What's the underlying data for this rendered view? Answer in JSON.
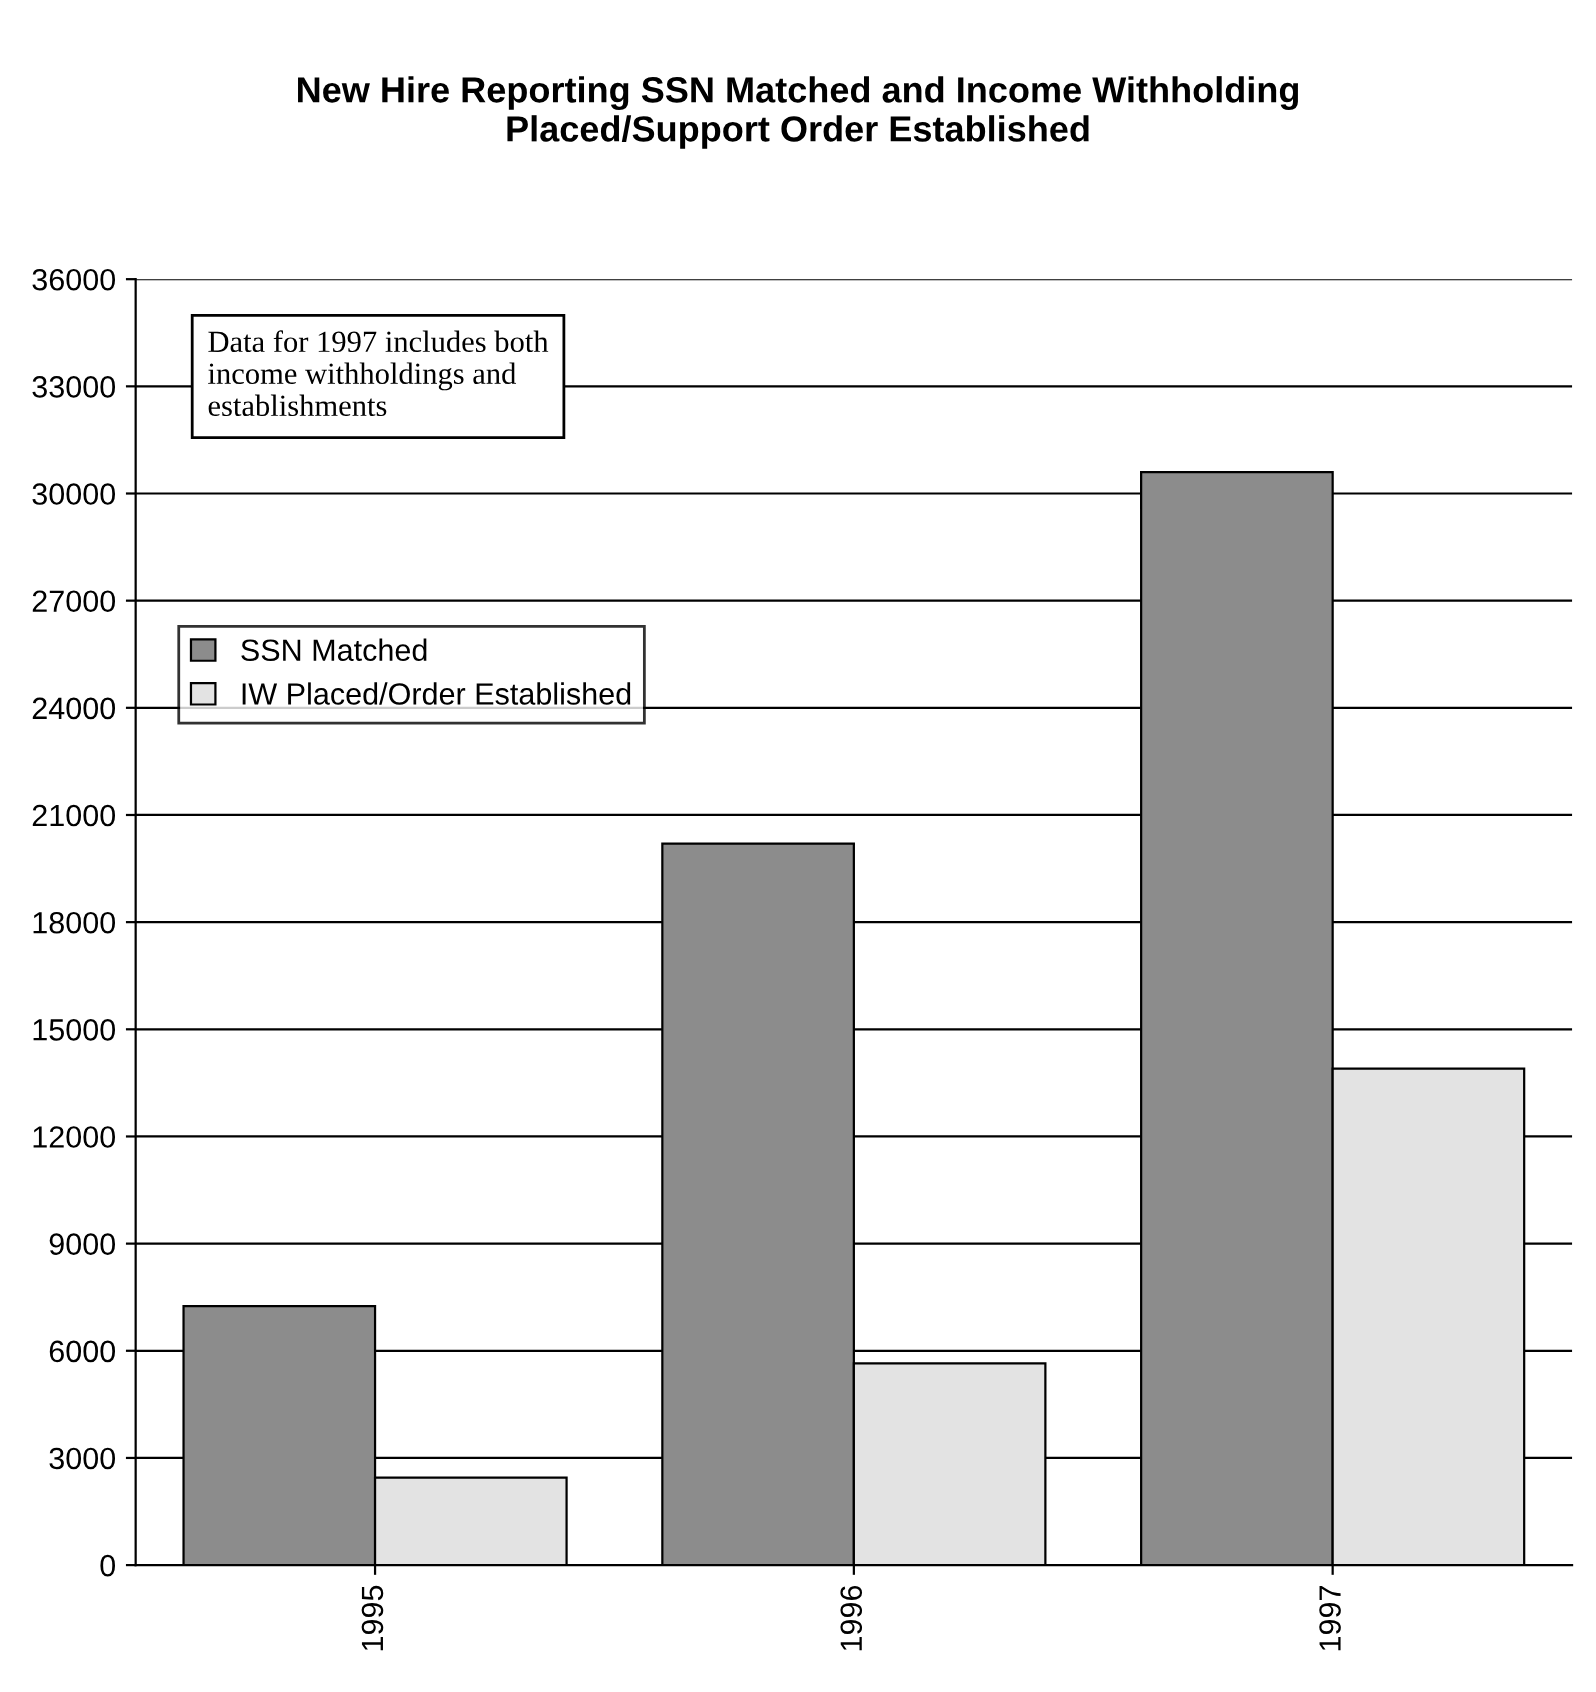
{
  "chart_data": {
    "type": "bar",
    "title": "New Hire Reporting SSN Matched and Income Withholding\nPlaced/Support Order Established",
    "categories": [
      "1995",
      "1996",
      "1997"
    ],
    "series": [
      {
        "name": "SSN Matched",
        "color": "#8c8c8c",
        "values": [
          7250,
          20200,
          30600
        ]
      },
      {
        "name": "IW Placed/Order Established",
        "color": "#e3e3e3",
        "values": [
          2450,
          5650,
          13900
        ]
      }
    ],
    "ylim": [
      0,
      36000
    ],
    "yticks": [
      0,
      3000,
      6000,
      9000,
      12000,
      15000,
      18000,
      21000,
      24000,
      27000,
      30000,
      33000,
      36000
    ],
    "grid": "y",
    "legend": "top left",
    "annotations": [
      "Data for 1997 includes both\nincome withholdings and\nestablishments"
    ]
  }
}
